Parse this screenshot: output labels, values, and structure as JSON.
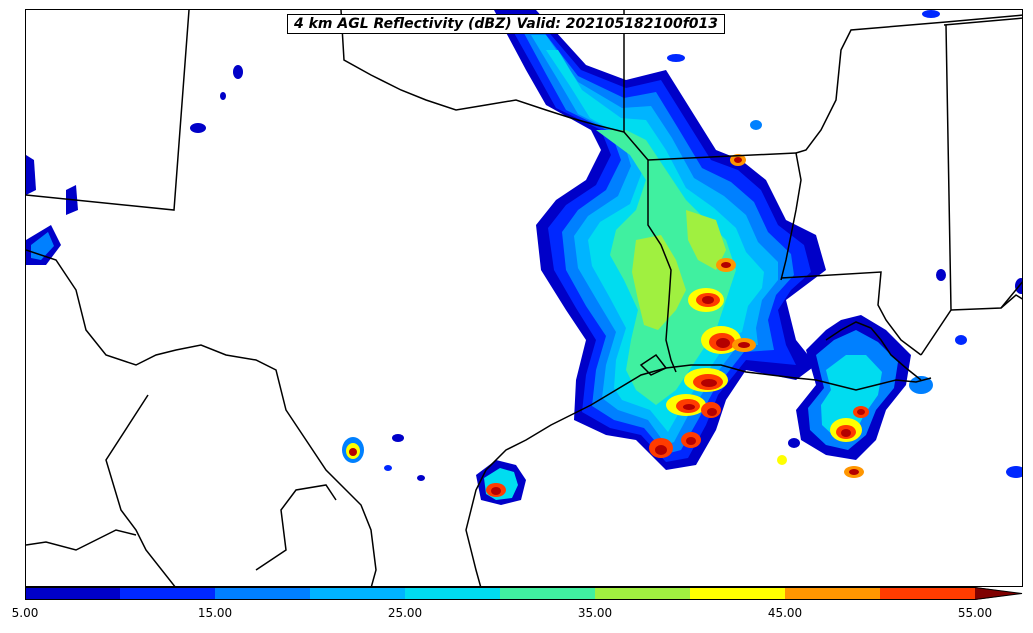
{
  "title": "4 km AGL Reflectivity (dBZ) Valid: 202105182100f013",
  "colorbar": {
    "min": 5.0,
    "max": 55.0,
    "extend": "max",
    "levels": [
      5,
      10,
      15,
      20,
      25,
      30,
      35,
      40,
      45,
      50,
      55
    ],
    "colors": [
      "#0000c8",
      "#0028ff",
      "#0080ff",
      "#00b4ff",
      "#00dcf0",
      "#40f0a0",
      "#a0f040",
      "#ffff00",
      "#ff9600",
      "#ff3c00",
      "#b40000",
      "#800000"
    ],
    "tick_labels": [
      "5.00",
      "15.00",
      "25.00",
      "35.00",
      "45.00",
      "55.00"
    ]
  },
  "map": {
    "variable": "4 km AGL Reflectivity",
    "units": "dBZ",
    "valid": "202105182100f013"
  }
}
